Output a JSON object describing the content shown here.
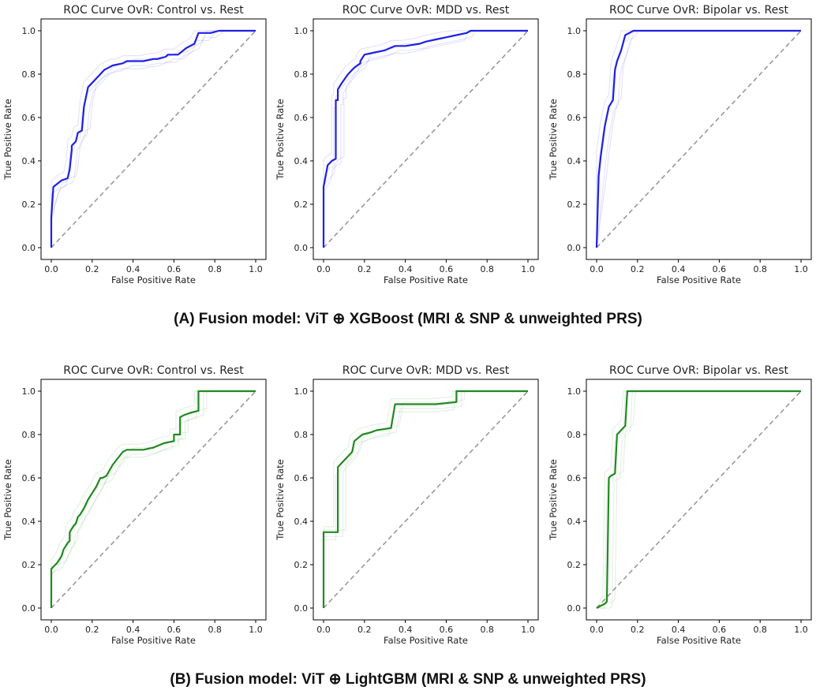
{
  "captions": {
    "a": "(A) Fusion model: ViT ⊕ XGBoost (MRI & SNP & unweighted PRS)",
    "b": "(B) Fusion model: ViT ⊕ LightGBM (MRI & SNP & unweighted PRS)"
  },
  "colors": {
    "blue": "#1f1fe6",
    "green": "#1f8a1f",
    "diagonal": "#999999",
    "axis": "#000000"
  },
  "chart_data": [
    {
      "type": "line",
      "row": "A",
      "title": "ROC Curve OvR: Control vs. Rest",
      "xlabel": "False Positive Rate",
      "ylabel": "True Positive Rate",
      "xlim": [
        0,
        1
      ],
      "ylim": [
        0,
        1
      ],
      "grid": false,
      "xticks": [
        "0.0",
        "0.2",
        "0.4",
        "0.6",
        "0.8",
        "1.0"
      ],
      "yticks": [
        "0.0",
        "0.2",
        "0.4",
        "0.6",
        "0.8",
        "1.0"
      ],
      "series": [
        {
          "color": "#1f1fe6",
          "x": [
            0,
            0,
            0.01,
            0.01,
            0.05,
            0.08,
            0.09,
            0.1,
            0.1,
            0.12,
            0.13,
            0.15,
            0.16,
            0.18,
            0.19,
            0.22,
            0.26,
            0.28,
            0.3,
            0.35,
            0.37,
            0.37,
            0.42,
            0.45,
            0.5,
            0.52,
            0.56,
            0.57,
            0.62,
            0.66,
            0.7,
            0.72,
            0.78,
            0.82,
            1.0
          ],
          "y": [
            0,
            0.14,
            0.28,
            0.28,
            0.31,
            0.32,
            0.36,
            0.45,
            0.47,
            0.49,
            0.53,
            0.54,
            0.65,
            0.74,
            0.75,
            0.78,
            0.82,
            0.83,
            0.84,
            0.85,
            0.86,
            0.86,
            0.86,
            0.86,
            0.87,
            0.87,
            0.88,
            0.89,
            0.89,
            0.92,
            0.94,
            0.99,
            0.99,
            1.0,
            1.0
          ]
        }
      ],
      "diagonal": [
        [
          0,
          0
        ],
        [
          1,
          1
        ]
      ]
    },
    {
      "type": "line",
      "row": "A",
      "title": "ROC Curve OvR: MDD vs. Rest",
      "xlabel": "False Positive Rate",
      "ylabel": "True Positive Rate",
      "xlim": [
        0,
        1
      ],
      "ylim": [
        0,
        1
      ],
      "grid": false,
      "xticks": [
        "0.0",
        "0.2",
        "0.4",
        "0.6",
        "0.8",
        "1.0"
      ],
      "yticks": [
        "0.0",
        "0.2",
        "0.4",
        "0.6",
        "0.8",
        "1.0"
      ],
      "series": [
        {
          "color": "#1f1fe6",
          "x": [
            0,
            0,
            0.01,
            0.02,
            0.04,
            0.06,
            0.06,
            0.07,
            0.07,
            0.09,
            0.12,
            0.15,
            0.18,
            0.18,
            0.2,
            0.25,
            0.3,
            0.35,
            0.4,
            0.47,
            0.5,
            0.55,
            0.6,
            0.65,
            0.7,
            0.72,
            0.8,
            1.0
          ],
          "y": [
            0,
            0.28,
            0.33,
            0.38,
            0.4,
            0.41,
            0.68,
            0.68,
            0.73,
            0.76,
            0.8,
            0.83,
            0.85,
            0.86,
            0.89,
            0.9,
            0.91,
            0.93,
            0.93,
            0.94,
            0.95,
            0.96,
            0.97,
            0.98,
            0.99,
            1.0,
            1.0,
            1.0
          ]
        }
      ],
      "diagonal": [
        [
          0,
          0
        ],
        [
          1,
          1
        ]
      ]
    },
    {
      "type": "line",
      "row": "A",
      "title": "ROC Curve OvR: Bipolar vs. Rest",
      "xlabel": "False Positive Rate",
      "ylabel": "True Positive Rate",
      "xlim": [
        0,
        1
      ],
      "ylim": [
        0,
        1
      ],
      "grid": false,
      "xticks": [
        "0.0",
        "0.2",
        "0.4",
        "0.6",
        "0.8",
        "1.0"
      ],
      "yticks": [
        "0.0",
        "0.2",
        "0.4",
        "0.6",
        "0.8",
        "1.0"
      ],
      "series": [
        {
          "color": "#1f1fe6",
          "x": [
            0,
            0.01,
            0.02,
            0.04,
            0.06,
            0.08,
            0.09,
            0.1,
            0.12,
            0.14,
            0.16,
            0.18,
            1.0
          ],
          "y": [
            0,
            0.33,
            0.42,
            0.56,
            0.65,
            0.68,
            0.82,
            0.86,
            0.91,
            0.98,
            0.99,
            1.0,
            1.0
          ]
        }
      ],
      "diagonal": [
        [
          0,
          0
        ],
        [
          1,
          1
        ]
      ]
    },
    {
      "type": "line",
      "row": "B",
      "title": "ROC Curve OvR: Control vs. Rest",
      "xlabel": "False Positive Rate",
      "ylabel": "True Positive Rate",
      "xlim": [
        0,
        1
      ],
      "ylim": [
        0,
        1
      ],
      "grid": false,
      "xticks": [
        "0.0",
        "0.2",
        "0.4",
        "0.6",
        "0.8",
        "1.0"
      ],
      "yticks": [
        "0.0",
        "0.2",
        "0.4",
        "0.6",
        "0.8",
        "1.0"
      ],
      "series": [
        {
          "color": "#1f8a1f",
          "x": [
            0,
            0,
            0.02,
            0.03,
            0.05,
            0.06,
            0.08,
            0.09,
            0.09,
            0.11,
            0.12,
            0.13,
            0.14,
            0.16,
            0.18,
            0.2,
            0.22,
            0.24,
            0.25,
            0.27,
            0.3,
            0.35,
            0.37,
            0.42,
            0.45,
            0.5,
            0.55,
            0.6,
            0.6,
            0.63,
            0.63,
            0.65,
            0.68,
            0.72,
            0.72,
            0.8,
            1.0
          ],
          "y": [
            0,
            0.18,
            0.2,
            0.21,
            0.24,
            0.27,
            0.3,
            0.31,
            0.35,
            0.38,
            0.39,
            0.42,
            0.43,
            0.46,
            0.5,
            0.53,
            0.56,
            0.6,
            0.6,
            0.61,
            0.66,
            0.72,
            0.73,
            0.73,
            0.73,
            0.74,
            0.76,
            0.77,
            0.8,
            0.8,
            0.88,
            0.89,
            0.9,
            0.91,
            1.0,
            1.0,
            1.0
          ]
        }
      ],
      "diagonal": [
        [
          0,
          0
        ],
        [
          1,
          1
        ]
      ]
    },
    {
      "type": "line",
      "row": "B",
      "title": "ROC Curve OvR: MDD vs. Rest",
      "xlabel": "False Positive Rate",
      "ylabel": "True Positive Rate",
      "xlim": [
        0,
        1
      ],
      "ylim": [
        0,
        1
      ],
      "grid": false,
      "xticks": [
        "0.0",
        "0.2",
        "0.4",
        "0.6",
        "0.8",
        "1.0"
      ],
      "yticks": [
        "0.0",
        "0.2",
        "0.4",
        "0.6",
        "0.8",
        "1.0"
      ],
      "series": [
        {
          "color": "#1f8a1f",
          "x": [
            0,
            0,
            0.07,
            0.07,
            0.1,
            0.12,
            0.14,
            0.15,
            0.19,
            0.23,
            0.26,
            0.33,
            0.35,
            0.36,
            0.5,
            0.55,
            0.65,
            0.65,
            0.72,
            0.8,
            1.0
          ],
          "y": [
            0,
            0.35,
            0.35,
            0.65,
            0.68,
            0.7,
            0.72,
            0.77,
            0.8,
            0.81,
            0.82,
            0.83,
            0.94,
            0.94,
            0.94,
            0.94,
            0.95,
            1.0,
            1.0,
            1.0,
            1.0
          ]
        }
      ],
      "diagonal": [
        [
          0,
          0
        ],
        [
          1,
          1
        ]
      ]
    },
    {
      "type": "line",
      "row": "B",
      "title": "ROC Curve OvR: Bipolar vs. Rest",
      "xlabel": "False Positive Rate",
      "ylabel": "True Positive Rate",
      "xlim": [
        0,
        1
      ],
      "ylim": [
        0,
        1
      ],
      "grid": false,
      "xticks": [
        "0.0",
        "0.2",
        "0.4",
        "0.6",
        "0.8",
        "1.0"
      ],
      "yticks": [
        "0.0",
        "0.2",
        "0.4",
        "0.6",
        "0.8",
        "1.0"
      ],
      "series": [
        {
          "color": "#1f8a1f",
          "x": [
            0,
            0.04,
            0.05,
            0.06,
            0.07,
            0.09,
            0.1,
            0.12,
            0.14,
            0.15,
            1.0
          ],
          "y": [
            0,
            0.02,
            0.03,
            0.6,
            0.61,
            0.62,
            0.8,
            0.82,
            0.84,
            1.0,
            1.0
          ]
        }
      ],
      "diagonal": [
        [
          0,
          0
        ],
        [
          1,
          1
        ]
      ]
    }
  ]
}
